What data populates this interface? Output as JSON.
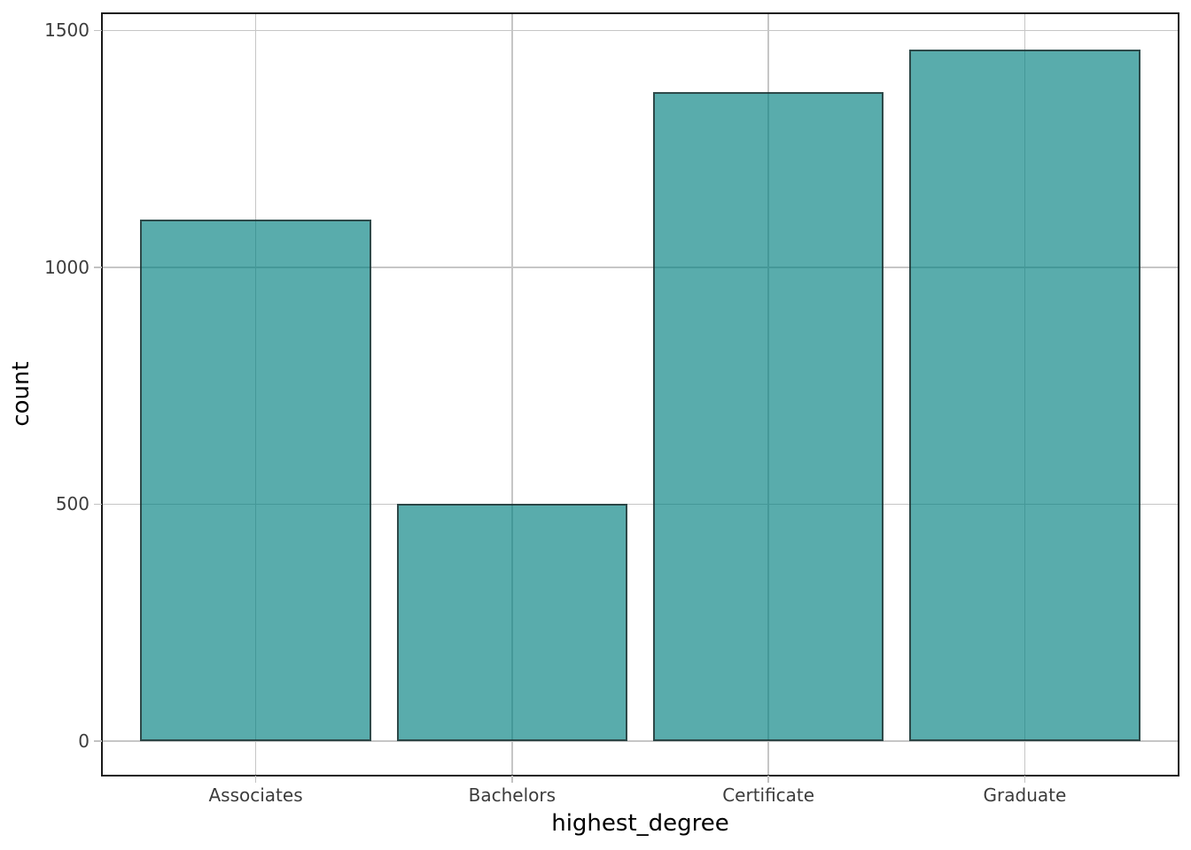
{
  "chart_data": {
    "type": "bar",
    "title": "",
    "xlabel": "highest_degree",
    "ylabel": "count",
    "categories": [
      "Associates",
      "Bachelors",
      "Certificate",
      "Graduate"
    ],
    "values": [
      1100,
      500,
      1370,
      1460
    ],
    "y_tick_values": [
      0,
      500,
      1000,
      1500
    ],
    "y_tick_labels": [
      "0",
      "500",
      "1000",
      "1500"
    ],
    "ylim": [
      -73,
      1536
    ],
    "grid": true,
    "legend": false,
    "bar_width_fraction": 0.9,
    "colors": {
      "bar_fill": "rgba(0,128,128,0.65)",
      "bar_fill_effective": "#59acac",
      "bar_border": "#595959",
      "gridline": "#c6c6c6",
      "panel_border": "#1a1a1a",
      "tick_mark": "#c2c2c2",
      "tick_label": "#3c3c3c",
      "axis_title": "#000000",
      "background": "#ffffff"
    }
  }
}
